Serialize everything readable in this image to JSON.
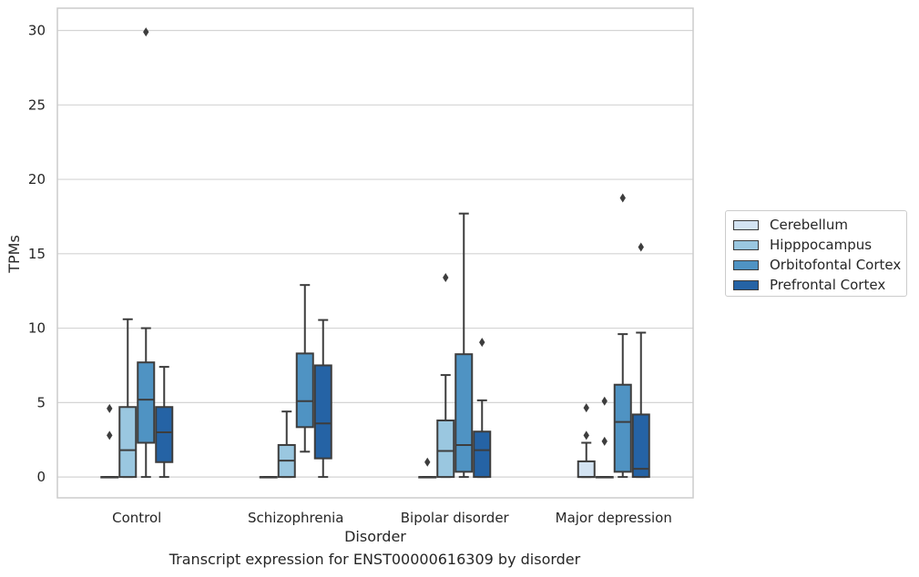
{
  "caption": "Transcript expression for ENST00000616309 by disorder",
  "chart_data": {
    "type": "boxplot",
    "xlabel": "Disorder",
    "ylabel": "TPMs",
    "ylim": [
      -1.4,
      31.5
    ],
    "yticks": [
      0,
      5,
      10,
      15,
      20,
      25,
      30
    ],
    "grid": "horizontal",
    "legend_position": "right",
    "categories": [
      "Control",
      "Schizophrenia",
      "Bipolar disorder",
      "Major depression"
    ],
    "series": [
      {
        "name": "Cerebellum",
        "color": "#d3e3f2",
        "boxes": [
          {
            "min": 0,
            "q1": 0,
            "median": 0,
            "q3": 0,
            "max": 0,
            "outliers": [
              4.6,
              2.8
            ]
          },
          {
            "min": 0,
            "q1": 0,
            "median": 0,
            "q3": 0,
            "max": 0,
            "outliers": []
          },
          {
            "min": 0,
            "q1": 0,
            "median": 0,
            "q3": 0,
            "max": 0,
            "outliers": [
              1.0
            ]
          },
          {
            "min": 0,
            "q1": 0,
            "median": 0,
            "q3": 1.05,
            "max": 2.3,
            "outliers": [
              4.65,
              2.8
            ]
          }
        ]
      },
      {
        "name": "Hipppocampus",
        "color": "#9ac7e0",
        "boxes": [
          {
            "min": 0,
            "q1": 0,
            "median": 1.8,
            "q3": 4.7,
            "max": 10.6,
            "outliers": []
          },
          {
            "min": 0,
            "q1": 0,
            "median": 1.1,
            "q3": 2.15,
            "max": 4.4,
            "outliers": []
          },
          {
            "min": 0,
            "q1": 0,
            "median": 1.75,
            "q3": 3.8,
            "max": 6.85,
            "outliers": [
              13.4
            ]
          },
          {
            "min": 0,
            "q1": 0,
            "median": 0,
            "q3": 0,
            "max": 0,
            "outliers": [
              5.1,
              2.4
            ]
          }
        ]
      },
      {
        "name": "Orbitofontal Cortex",
        "color": "#4f93c3",
        "boxes": [
          {
            "min": 0,
            "q1": 2.3,
            "median": 5.2,
            "q3": 7.7,
            "max": 10.0,
            "outliers": [
              29.9
            ]
          },
          {
            "min": 1.7,
            "q1": 3.35,
            "median": 5.1,
            "q3": 8.3,
            "max": 12.9,
            "outliers": []
          },
          {
            "min": 0,
            "q1": 0.35,
            "median": 2.15,
            "q3": 8.25,
            "max": 17.7,
            "outliers": []
          },
          {
            "min": 0,
            "q1": 0.35,
            "median": 3.7,
            "q3": 6.2,
            "max": 9.6,
            "outliers": [
              18.75
            ]
          }
        ]
      },
      {
        "name": "Prefrontal Cortex",
        "color": "#2563a5",
        "boxes": [
          {
            "min": 0,
            "q1": 1.0,
            "median": 3.0,
            "q3": 4.7,
            "max": 7.4,
            "outliers": []
          },
          {
            "min": 0,
            "q1": 1.25,
            "median": 3.6,
            "q3": 7.5,
            "max": 10.55,
            "outliers": []
          },
          {
            "min": 0,
            "q1": 0,
            "median": 1.8,
            "q3": 3.05,
            "max": 5.15,
            "outliers": [
              9.05
            ]
          },
          {
            "min": 0,
            "q1": 0,
            "median": 0.55,
            "q3": 4.2,
            "max": 9.7,
            "outliers": [
              15.45
            ]
          }
        ]
      }
    ]
  }
}
